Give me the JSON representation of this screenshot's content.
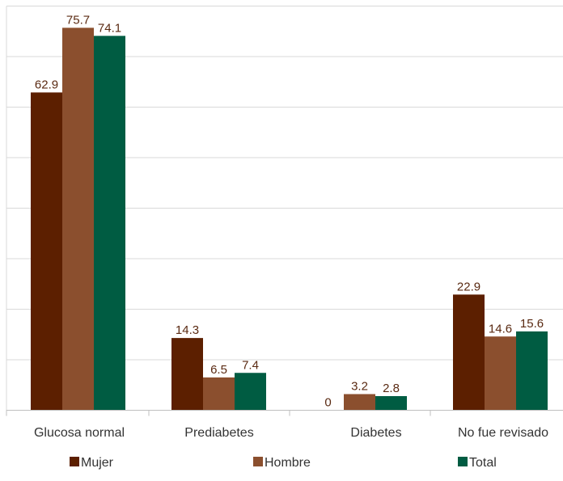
{
  "chart_data": {
    "type": "bar",
    "categories": [
      "Glucosa normal",
      "Prediabetes",
      "Diabetes",
      "No fue revisado"
    ],
    "series": [
      {
        "name": "Mujer",
        "color": "#5c1f00",
        "values": [
          62.9,
          14.3,
          0,
          22.9
        ],
        "labels": [
          "62.9",
          "14.3",
          "0",
          "22.9"
        ]
      },
      {
        "name": "Hombre",
        "color": "#8b4f2e",
        "values": [
          75.7,
          6.5,
          3.2,
          14.6
        ],
        "labels": [
          "75.7",
          "6.5",
          "3.2",
          "14.6"
        ]
      },
      {
        "name": "Total",
        "color": "#005c42",
        "values": [
          74.1,
          7.4,
          2.8,
          15.6
        ],
        "labels": [
          "74.1",
          "7.4",
          "2.8",
          "15.6"
        ]
      }
    ],
    "ylim": [
      0,
      80
    ],
    "y_gridlines": [
      10,
      20,
      30,
      40,
      50,
      60,
      70,
      80
    ],
    "grid": true,
    "legend_position": "bottom"
  }
}
